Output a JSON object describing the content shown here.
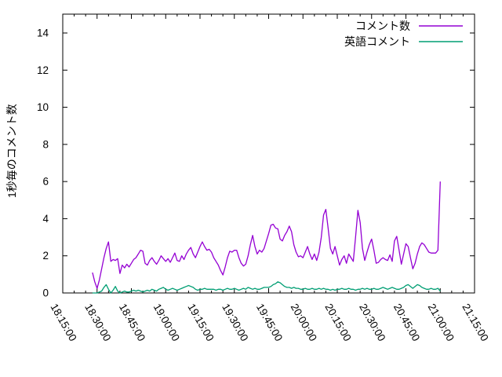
{
  "chart_data": {
    "type": "line",
    "title": "",
    "ylabel": "1秒毎のコメント数",
    "grid": false,
    "legend_position": "top-right-inside",
    "background_color": "#ffffff",
    "axis_color": "#000000",
    "x_axis": {
      "start_label": "18:15:00",
      "end_label": "21:15:00",
      "range_minutes": 180,
      "major_tick_minutes": 15,
      "minor_tick_minutes": 5,
      "label_rotation_deg": 60,
      "tick_labels": [
        "18:15:00",
        "18:30:00",
        "18:45:00",
        "19:00:00",
        "19:15:00",
        "19:30:00",
        "19:45:00",
        "20:00:00",
        "20:15:00",
        "20:30:00",
        "20:45:00",
        "21:00:00",
        "21:15:00"
      ]
    },
    "y_axis": {
      "min": 0,
      "max": 15,
      "major_tick_step": 2,
      "tick_labels": [
        "0",
        "2",
        "4",
        "6",
        "8",
        "10",
        "12",
        "14"
      ]
    },
    "sample_interval_minutes": 1,
    "series": [
      {
        "name": "コメント数",
        "color": "#9400d3",
        "start_minutes_after_1815": 13,
        "values": [
          1.1,
          0.6,
          0.25,
          0.7,
          1.3,
          1.9,
          2.4,
          2.75,
          1.7,
          1.8,
          1.75,
          1.85,
          1.05,
          1.5,
          1.35,
          1.55,
          1.4,
          1.6,
          1.8,
          1.9,
          2.1,
          2.3,
          2.25,
          1.6,
          1.5,
          1.75,
          1.9,
          1.7,
          1.55,
          1.75,
          2.0,
          1.85,
          1.7,
          1.85,
          1.65,
          1.9,
          2.15,
          1.75,
          1.7,
          2.0,
          1.8,
          2.1,
          2.3,
          2.45,
          2.1,
          1.9,
          2.2,
          2.5,
          2.75,
          2.5,
          2.3,
          2.35,
          2.2,
          1.9,
          1.7,
          1.5,
          1.2,
          0.97,
          1.4,
          1.9,
          2.25,
          2.2,
          2.3,
          2.3,
          1.9,
          1.6,
          1.45,
          1.55,
          2.0,
          2.6,
          3.1,
          2.5,
          2.1,
          2.3,
          2.2,
          2.4,
          2.8,
          3.2,
          3.65,
          3.7,
          3.5,
          3.45,
          2.9,
          2.8,
          3.1,
          3.3,
          3.6,
          3.3,
          2.6,
          2.2,
          1.95,
          2.0,
          1.9,
          2.2,
          2.5,
          2.1,
          1.8,
          2.1,
          1.75,
          2.2,
          3.0,
          4.2,
          4.5,
          3.5,
          2.4,
          2.1,
          2.5,
          2.0,
          1.5,
          1.8,
          2.0,
          1.6,
          2.1,
          1.9,
          1.7,
          3.0,
          4.45,
          3.8,
          2.4,
          1.75,
          2.2,
          2.6,
          2.9,
          2.3,
          1.6,
          1.65,
          1.8,
          1.9,
          1.8,
          1.75,
          2.05,
          1.7,
          2.8,
          3.05,
          2.3,
          1.55,
          2.1,
          2.65,
          2.5,
          1.9,
          1.3,
          1.6,
          2.1,
          2.5,
          2.7,
          2.6,
          2.4,
          2.2,
          2.15,
          2.15,
          2.15,
          2.3,
          6.0
        ]
      },
      {
        "name": "英語コメント",
        "color": "#009e73",
        "start_minutes_after_1815": 13,
        "values": [
          0,
          0,
          0,
          0.05,
          0.1,
          0.3,
          0.45,
          0.2,
          0,
          0.15,
          0.35,
          0.1,
          0,
          0.05,
          0.1,
          0.05,
          0.05,
          0.1,
          0.15,
          0.1,
          0.15,
          0.1,
          0.05,
          0.1,
          0.15,
          0.1,
          0.2,
          0.15,
          0.1,
          0.2,
          0.25,
          0.3,
          0.2,
          0.15,
          0.2,
          0.25,
          0.2,
          0.15,
          0.2,
          0.25,
          0.3,
          0.35,
          0.4,
          0.35,
          0.3,
          0.2,
          0.15,
          0.2,
          0.2,
          0.25,
          0.2,
          0.2,
          0.2,
          0.2,
          0.15,
          0.2,
          0.2,
          0.15,
          0.2,
          0.25,
          0.2,
          0.2,
          0.25,
          0.2,
          0.15,
          0.2,
          0.25,
          0.2,
          0.3,
          0.25,
          0.2,
          0.25,
          0.2,
          0.2,
          0.25,
          0.3,
          0.3,
          0.3,
          0.35,
          0.45,
          0.5,
          0.6,
          0.55,
          0.45,
          0.35,
          0.3,
          0.3,
          0.25,
          0.3,
          0.25,
          0.25,
          0.2,
          0.2,
          0.25,
          0.2,
          0.2,
          0.25,
          0.2,
          0.2,
          0.25,
          0.2,
          0.25,
          0.2,
          0.2,
          0.15,
          0.2,
          0.15,
          0.2,
          0.2,
          0.25,
          0.2,
          0.2,
          0.25,
          0.2,
          0.2,
          0.15,
          0.2,
          0.2,
          0.25,
          0.2,
          0.25,
          0.2,
          0.2,
          0.25,
          0.2,
          0.2,
          0.25,
          0.3,
          0.25,
          0.2,
          0.25,
          0.3,
          0.25,
          0.2,
          0.2,
          0.25,
          0.3,
          0.4,
          0.45,
          0.35,
          0.25,
          0.35,
          0.45,
          0.4,
          0.3,
          0.25,
          0.2,
          0.2,
          0.25,
          0.2,
          0.2,
          0.25,
          0.1
        ]
      }
    ]
  }
}
